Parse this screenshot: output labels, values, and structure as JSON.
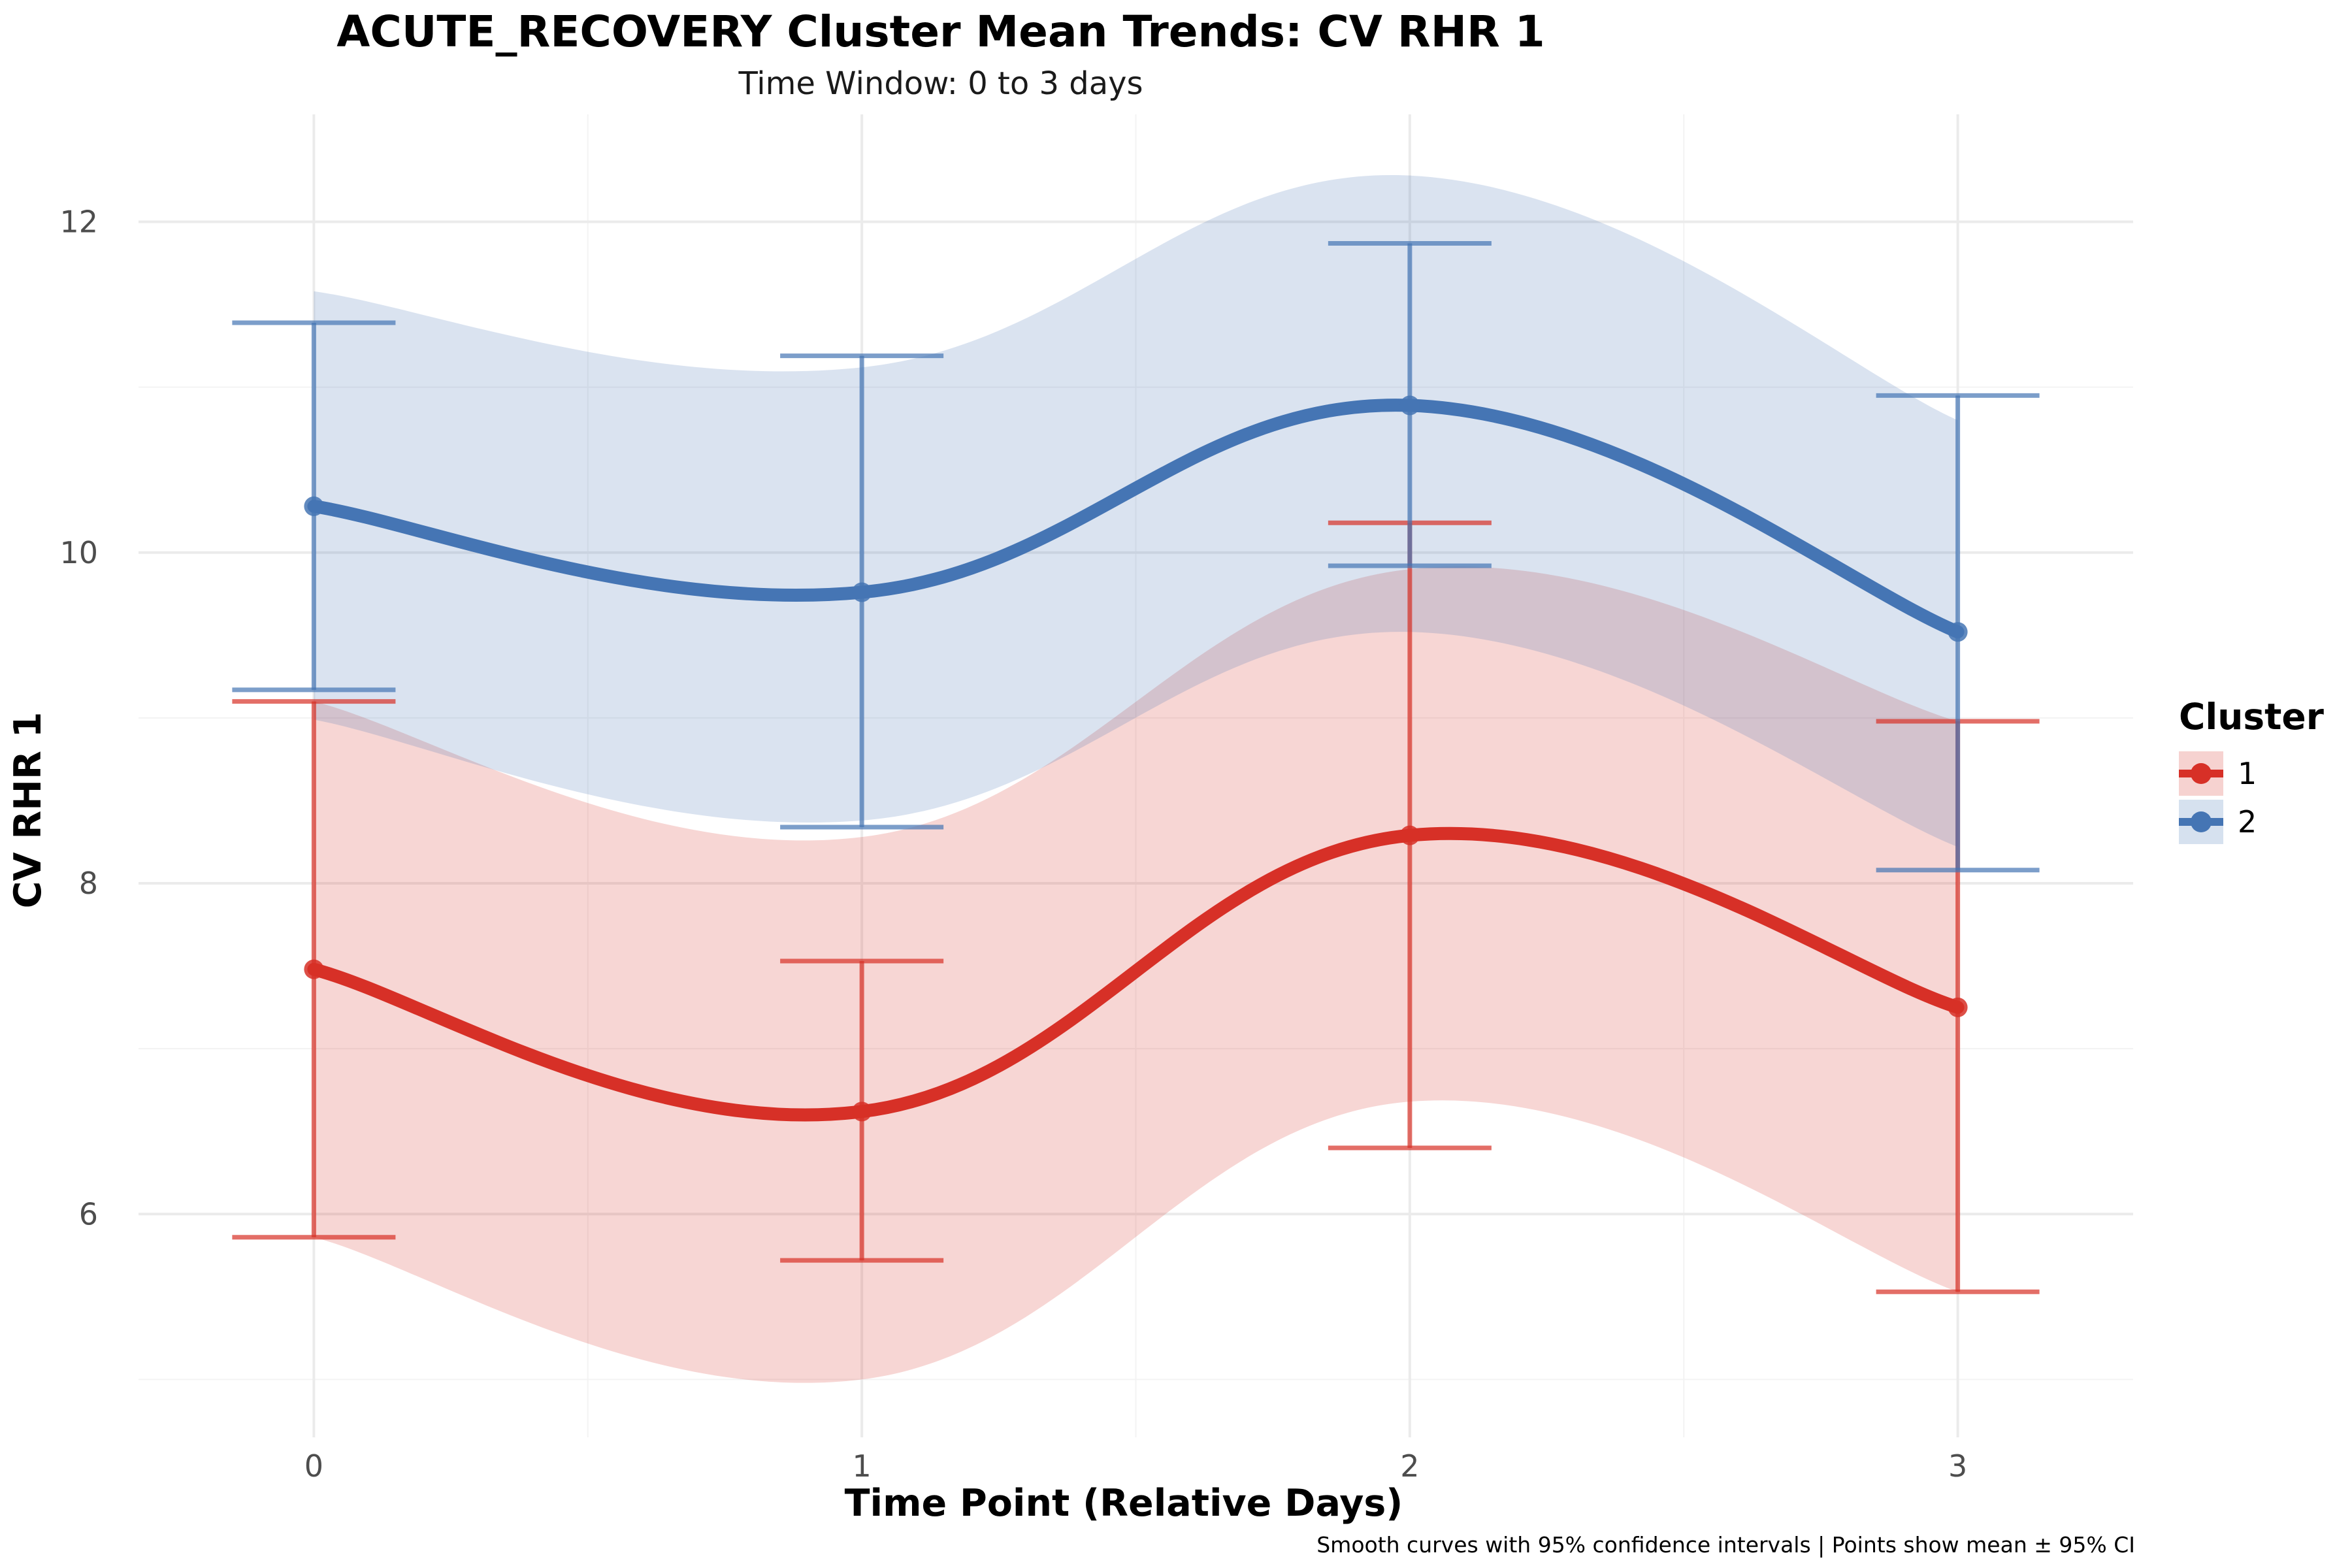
{
  "header": {
    "title": "ACUTE_RECOVERY Cluster Mean Trends: CV RHR 1",
    "subtitle": "Time Window: 0 to 3 days",
    "caption": "Smooth curves with 95% confidence intervals | Points show mean ± 95% CI"
  },
  "chart_data": {
    "type": "line",
    "title": "ACUTE_RECOVERY Cluster Mean Trends: CV RHR 1",
    "subtitle": "Time Window: 0 to 3 days",
    "xlabel": "Time Point (Relative Days)",
    "ylabel": "CV RHR 1",
    "x": [
      0,
      1,
      2,
      3
    ],
    "x_ticks": [
      "0",
      "1",
      "2",
      "3"
    ],
    "y_ticks": [
      "6",
      "8",
      "10",
      "12"
    ],
    "xlim": [
      -0.32,
      3.32
    ],
    "ylim": [
      4.65,
      12.65
    ],
    "grid": true,
    "legend_title": "Cluster",
    "legend_position": "right",
    "series": [
      {
        "name": "1",
        "color": "#d73027",
        "mean": [
          7.48,
          6.62,
          8.29,
          7.25
        ],
        "ci_lower": [
          5.86,
          5.72,
          6.4,
          5.53
        ],
        "ci_upper": [
          9.1,
          7.53,
          10.18,
          8.98
        ],
        "band_upper": [
          9.1,
          8.28,
          9.9,
          8.98
        ],
        "band_lower": [
          5.86,
          5.0,
          6.68,
          5.53
        ]
      },
      {
        "name": "2",
        "color": "#4575b4",
        "mean": [
          10.28,
          9.76,
          10.89,
          9.52
        ],
        "ci_lower": [
          9.17,
          8.34,
          9.92,
          8.08
        ],
        "ci_upper": [
          11.39,
          11.19,
          11.87,
          10.95
        ],
        "band_upper": [
          11.58,
          11.12,
          12.28,
          10.8
        ],
        "band_lower": [
          8.99,
          8.38,
          9.52,
          8.22
        ]
      }
    ],
    "caption": "Smooth curves with 95% confidence intervals | Points show mean ± 95% CI"
  }
}
